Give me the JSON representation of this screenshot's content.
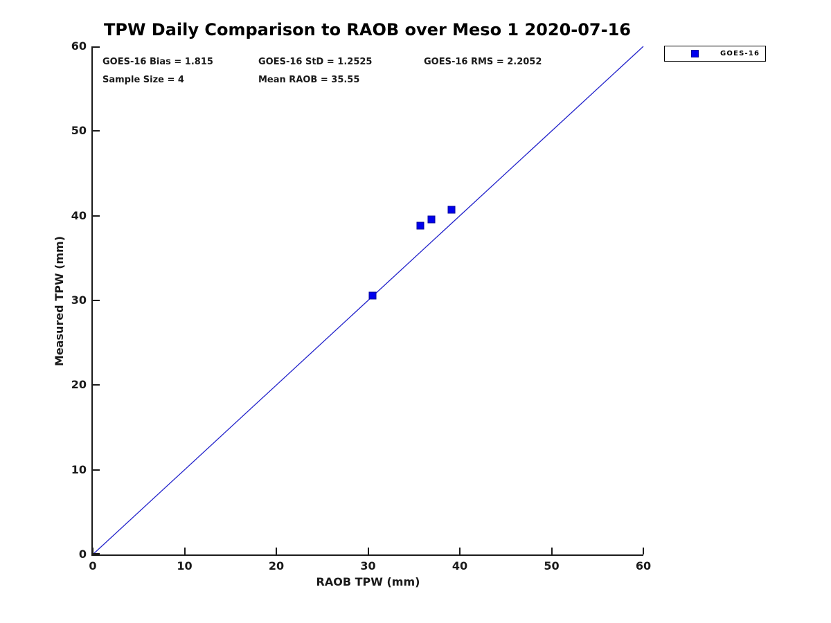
{
  "chart_data": {
    "type": "scatter",
    "title": "TPW Daily Comparison to RAOB over Meso 1 2020-07-16",
    "xlabel": "RAOB TPW (mm)",
    "ylabel": "Measured TPW (mm)",
    "xlim": [
      0,
      60
    ],
    "ylim": [
      0,
      60
    ],
    "xticks": [
      0,
      10,
      20,
      30,
      40,
      50,
      60
    ],
    "yticks": [
      0,
      10,
      20,
      30,
      40,
      50,
      60
    ],
    "grid": false,
    "legend_position": "outside-upper-right",
    "series": [
      {
        "name": "GOES-16",
        "marker": "square",
        "marker_fill": "#0000ee",
        "marker_edge": "#000099",
        "points": [
          {
            "x": 30.5,
            "y": 30.6
          },
          {
            "x": 35.7,
            "y": 38.8
          },
          {
            "x": 36.9,
            "y": 39.6
          },
          {
            "x": 39.1,
            "y": 40.7
          }
        ]
      }
    ],
    "reference_line": {
      "name": "one-to-one line",
      "from": {
        "x": 0,
        "y": 0
      },
      "to": {
        "x": 60,
        "y": 60
      },
      "color": "#2323cb",
      "width": 1.3
    }
  },
  "stats": {
    "bias": "GOES-16 Bias = 1.815",
    "std": "GOES-16 StD = 1.2525",
    "rms": "GOES-16 RMS = 2.2052",
    "sample_size": "Sample Size = 4",
    "mean_raob": "Mean RAOB = 35.55"
  },
  "colors": {
    "background": "#ffffff",
    "axis": "#1a1a1a",
    "text": "#1a1a1a",
    "marker": "#0000ee",
    "line": "#2323cb"
  }
}
